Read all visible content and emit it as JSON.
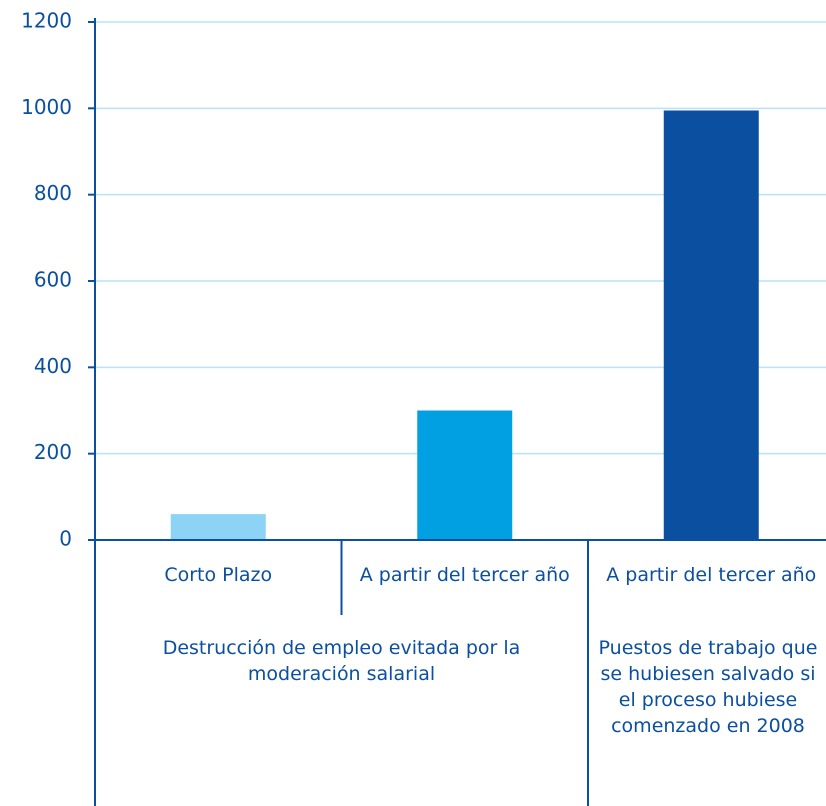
{
  "chart_data": {
    "type": "bar",
    "categories": [
      "Corto Plazo",
      "A partir del tercer año",
      "A partir del tercer año"
    ],
    "groups": [
      "Destrucción de empleo evitada por la moderación salarial",
      "Puestos de trabajo que se hubiesen salvado si el proceso hubiese comenzado en 2008"
    ],
    "values": [
      60,
      300,
      995
    ],
    "colors": [
      "#8dd3f5",
      "#00a0e2",
      "#0b4fa0"
    ],
    "ylim": [
      0,
      1200
    ],
    "yticks": [
      0,
      200,
      400,
      600,
      800,
      1000,
      1200
    ],
    "grid": true
  }
}
